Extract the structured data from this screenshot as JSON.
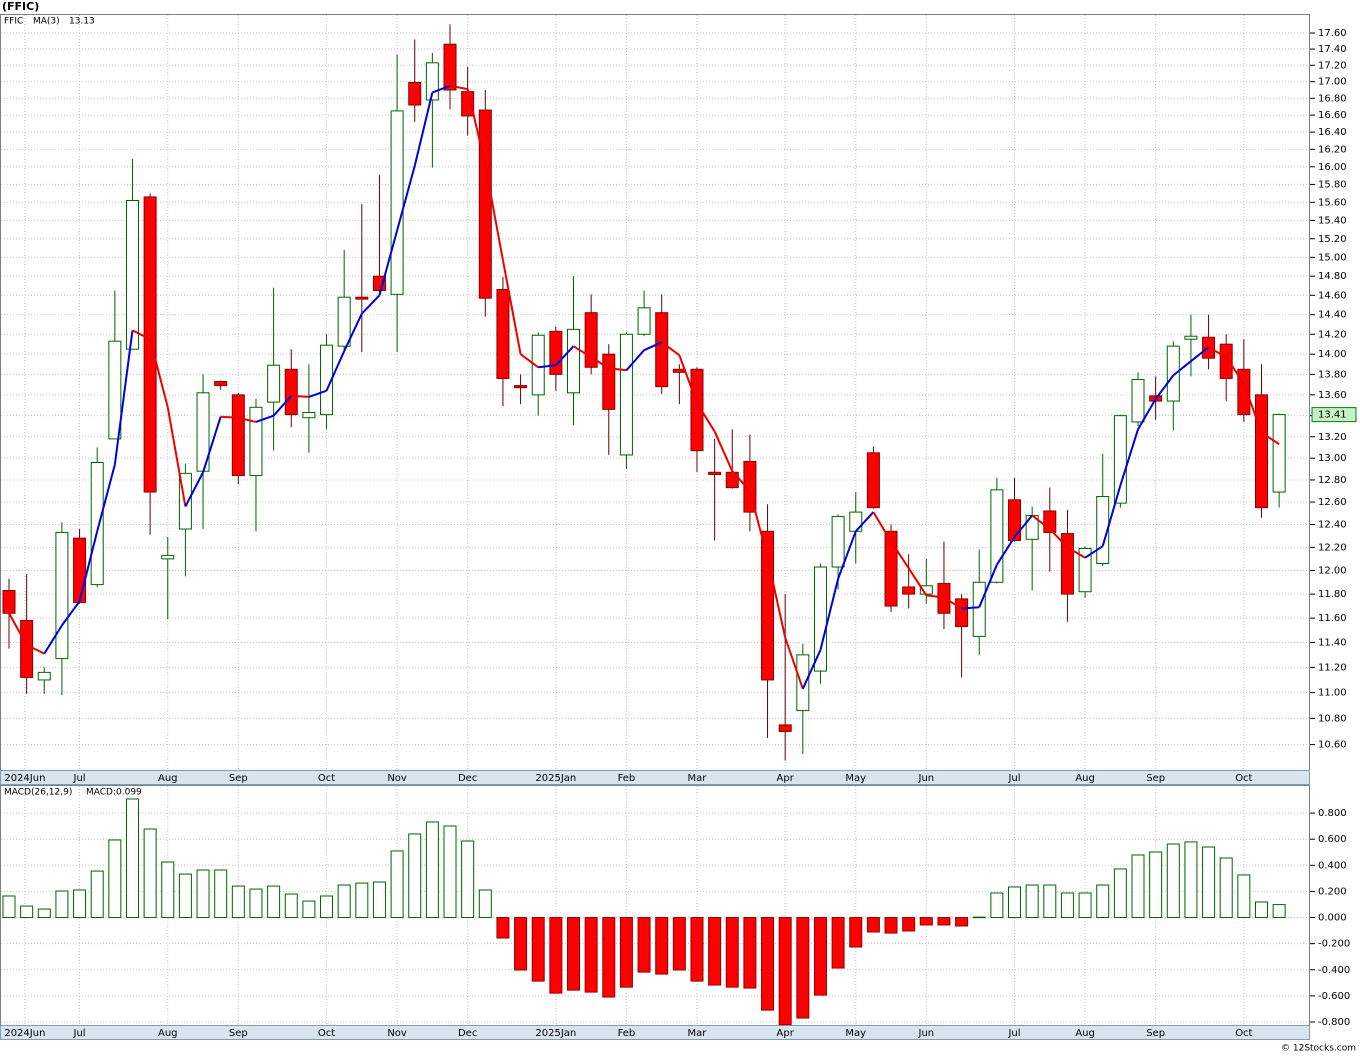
{
  "title": "(FFIC)",
  "footer": "© 12Stocks.com",
  "chart_data": [
    {
      "type": "candlestick",
      "name": "FFIC",
      "open": [
        11.83,
        11.58,
        11.1,
        11.27,
        12.28,
        11.88,
        13.18,
        14.05,
        15.66,
        12.1,
        12.36,
        12.88,
        13.73,
        13.6,
        12.84,
        13.53,
        13.85,
        13.38,
        13.41,
        14.08,
        14.58,
        14.8,
        14.61,
        16.99,
        16.78,
        17.46,
        16.88,
        16.66,
        14.66,
        13.69,
        13.6,
        14.23,
        13.62,
        14.42,
        14.0,
        13.03,
        14.2,
        14.42,
        13.85,
        13.85,
        12.87,
        12.87,
        12.97,
        12.34,
        10.75,
        10.86,
        11.17,
        12.03,
        12.34,
        13.05,
        12.34,
        11.86,
        11.8,
        11.89,
        11.76,
        11.45,
        11.9,
        12.62,
        12.27,
        12.52,
        12.32,
        11.82,
        12.06,
        12.59,
        13.34,
        13.59,
        13.54,
        14.15,
        14.17,
        14.1,
        13.85,
        13.6,
        12.69
      ],
      "high": [
        11.93,
        11.97,
        11.2,
        12.42,
        12.36,
        13.1,
        14.65,
        16.09,
        15.7,
        12.29,
        12.95,
        13.8,
        13.74,
        13.62,
        13.56,
        14.68,
        14.05,
        13.9,
        14.2,
        15.08,
        15.58,
        15.91,
        17.33,
        17.52,
        17.35,
        17.71,
        17.18,
        16.9,
        14.79,
        13.8,
        14.22,
        14.28,
        14.8,
        14.61,
        14.1,
        14.22,
        14.65,
        14.61,
        13.9,
        13.87,
        13.18,
        13.27,
        13.22,
        12.58,
        11.8,
        11.39,
        12.06,
        12.49,
        12.69,
        13.11,
        12.4,
        12.14,
        12.1,
        12.25,
        11.8,
        12.18,
        12.82,
        12.82,
        12.56,
        12.73,
        12.53,
        12.21,
        13.04,
        13.41,
        13.82,
        13.78,
        14.13,
        14.4,
        14.4,
        14.2,
        14.15,
        13.9,
        13.42
      ],
      "low": [
        11.35,
        10.99,
        10.99,
        10.98,
        11.72,
        11.86,
        13.18,
        14.05,
        12.31,
        11.59,
        11.95,
        12.36,
        13.65,
        12.76,
        12.34,
        13.07,
        13.29,
        13.05,
        13.27,
        14.02,
        14.02,
        14.63,
        14.02,
        16.52,
        15.99,
        16.67,
        16.36,
        14.38,
        13.49,
        13.51,
        13.4,
        13.64,
        13.31,
        13.8,
        13.03,
        12.9,
        14.18,
        13.61,
        13.51,
        12.87,
        12.26,
        12.72,
        12.34,
        10.65,
        10.48,
        10.53,
        11.07,
        11.84,
        12.06,
        12.54,
        11.65,
        11.68,
        11.72,
        11.51,
        11.12,
        11.3,
        11.89,
        12.25,
        11.83,
        11.99,
        11.57,
        11.77,
        12.04,
        12.55,
        13.3,
        13.36,
        13.26,
        13.78,
        13.85,
        13.54,
        13.34,
        12.46,
        12.55
      ],
      "close": [
        11.64,
        11.12,
        11.16,
        12.33,
        11.73,
        12.96,
        14.13,
        15.62,
        12.69,
        12.13,
        12.86,
        13.62,
        13.69,
        12.84,
        13.48,
        13.89,
        13.41,
        13.43,
        14.09,
        14.58,
        14.56,
        14.65,
        16.65,
        16.72,
        17.23,
        16.9,
        16.59,
        14.57,
        13.76,
        13.67,
        14.19,
        13.8,
        14.25,
        13.87,
        13.46,
        14.2,
        14.47,
        13.68,
        13.82,
        13.07,
        12.85,
        12.73,
        12.51,
        11.1,
        10.7,
        11.3,
        12.03,
        12.47,
        12.51,
        12.55,
        11.7,
        11.8,
        11.87,
        11.64,
        11.53,
        11.9,
        12.71,
        12.26,
        12.48,
        12.33,
        11.8,
        12.19,
        12.65,
        13.4,
        13.75,
        13.54,
        14.08,
        14.18,
        13.96,
        13.76,
        13.41,
        12.55,
        13.41
      ],
      "last_label": "13.41",
      "up_color": "#006400",
      "down_color": "#ff0000",
      "ma": {
        "name": "MA(3)",
        "last_label": "13.13",
        "up_color": "#0000dd",
        "down_color": "#ee0000",
        "values": [
          11.64,
          11.38,
          11.31,
          11.54,
          11.74,
          12.34,
          12.94,
          14.24,
          14.15,
          13.48,
          12.56,
          12.87,
          13.39,
          13.38,
          13.34,
          13.4,
          13.59,
          13.58,
          13.64,
          14.03,
          14.41,
          14.6,
          15.29,
          16.01,
          16.87,
          16.95,
          16.91,
          16.02,
          14.97,
          14.0,
          13.87,
          13.89,
          14.08,
          13.97,
          13.86,
          13.84,
          14.04,
          14.12,
          13.99,
          13.52,
          13.25,
          12.88,
          12.7,
          12.11,
          11.44,
          11.03,
          11.34,
          11.93,
          12.34,
          12.51,
          12.25,
          12.02,
          11.79,
          11.77,
          11.68,
          11.69,
          12.05,
          12.29,
          12.48,
          12.36,
          12.2,
          12.11,
          12.21,
          12.75,
          13.27,
          13.56,
          13.79,
          13.93,
          14.07,
          13.97,
          13.71,
          13.24,
          13.13
        ]
      },
      "log_scale": true,
      "grid": true,
      "xlim": [
        -0.51,
        73.75
      ],
      "ylim": [
        10.41,
        17.84
      ],
      "xticks": [
        {
          "value": 0.9,
          "label": "2024Jun"
        },
        {
          "value": 4,
          "label": "Jul"
        },
        {
          "value": 9,
          "label": "Aug"
        },
        {
          "value": 13,
          "label": "Sep"
        },
        {
          "value": 18,
          "label": "Oct"
        },
        {
          "value": 22,
          "label": "Nov"
        },
        {
          "value": 26,
          "label": "Dec"
        },
        {
          "value": 31,
          "label": "2025Jan"
        },
        {
          "value": 35,
          "label": "Feb"
        },
        {
          "value": 39,
          "label": "Mar"
        },
        {
          "value": 44,
          "label": "Apr"
        },
        {
          "value": 48,
          "label": "May"
        },
        {
          "value": 52,
          "label": "Jun"
        },
        {
          "value": 57,
          "label": "Jul"
        },
        {
          "value": 61,
          "label": "Aug"
        },
        {
          "value": 65,
          "label": "Sep"
        },
        {
          "value": 70,
          "label": "Oct"
        }
      ],
      "yticks": [
        {
          "value": 10.6,
          "label": "10.60"
        },
        {
          "value": 10.8,
          "label": "10.80"
        },
        {
          "value": 11.0,
          "label": "11.00"
        },
        {
          "value": 11.2,
          "label": "11.20"
        },
        {
          "value": 11.4,
          "label": "11.40"
        },
        {
          "value": 11.6,
          "label": "11.60"
        },
        {
          "value": 11.8,
          "label": "11.80"
        },
        {
          "value": 12.0,
          "label": "12.00"
        },
        {
          "value": 12.2,
          "label": "12.20"
        },
        {
          "value": 12.4,
          "label": "12.40"
        },
        {
          "value": 12.6,
          "label": "12.60"
        },
        {
          "value": 12.8,
          "label": "12.80"
        },
        {
          "value": 13.0,
          "label": "13.00"
        },
        {
          "value": 13.2,
          "label": "13.20"
        },
        {
          "value": 13.4,
          "label": "13.40"
        },
        {
          "value": 13.6,
          "label": "13.60"
        },
        {
          "value": 13.8,
          "label": "13.80"
        },
        {
          "value": 14.0,
          "label": "14.00"
        },
        {
          "value": 14.2,
          "label": "14.20"
        },
        {
          "value": 14.4,
          "label": "14.40"
        },
        {
          "value": 14.6,
          "label": "14.60"
        },
        {
          "value": 14.8,
          "label": "14.80"
        },
        {
          "value": 15.0,
          "label": "15.00"
        },
        {
          "value": 15.2,
          "label": "15.20"
        },
        {
          "value": 15.4,
          "label": "15.40"
        },
        {
          "value": 15.6,
          "label": "15.60"
        },
        {
          "value": 15.8,
          "label": "15.80"
        },
        {
          "value": 16.0,
          "label": "16.00"
        },
        {
          "value": 16.2,
          "label": "16.20"
        },
        {
          "value": 16.4,
          "label": "16.40"
        },
        {
          "value": 16.6,
          "label": "16.60"
        },
        {
          "value": 16.8,
          "label": "16.80"
        },
        {
          "value": 17.0,
          "label": "17.00"
        },
        {
          "value": 17.2,
          "label": "17.20"
        },
        {
          "value": 17.4,
          "label": "17.40"
        },
        {
          "value": 17.6,
          "label": "17.60"
        }
      ]
    },
    {
      "type": "bar",
      "name": "MACD(26,12,9)",
      "last_label": "MACD:0.099",
      "values": [
        0.165,
        0.088,
        0.065,
        0.203,
        0.211,
        0.356,
        0.594,
        0.908,
        0.678,
        0.425,
        0.333,
        0.364,
        0.364,
        0.241,
        0.218,
        0.241,
        0.18,
        0.126,
        0.165,
        0.249,
        0.264,
        0.272,
        0.51,
        0.64,
        0.732,
        0.701,
        0.586,
        0.211,
        -0.157,
        -0.402,
        -0.487,
        -0.579,
        -0.556,
        -0.571,
        -0.609,
        -0.533,
        -0.418,
        -0.433,
        -0.402,
        -0.487,
        -0.517,
        -0.533,
        -0.54,
        -0.709,
        -0.82,
        -0.77,
        -0.594,
        -0.387,
        -0.226,
        -0.111,
        -0.119,
        -0.103,
        -0.057,
        -0.057,
        -0.065,
        0.003,
        0.188,
        0.234,
        0.249,
        0.249,
        0.188,
        0.188,
        0.249,
        0.372,
        0.479,
        0.502,
        0.563,
        0.579,
        0.54,
        0.456,
        0.326,
        0.119,
        0.099
      ],
      "up_color": "#006400",
      "down_color": "#ff0000",
      "log_scale": false,
      "grid": true,
      "xlim": [
        -0.51,
        73.75
      ],
      "ylim": [
        -0.823,
        1.015
      ],
      "xticks": [
        {
          "value": 0.9,
          "label": "2024Jun"
        },
        {
          "value": 4,
          "label": "Jul"
        },
        {
          "value": 9,
          "label": "Aug"
        },
        {
          "value": 13,
          "label": "Sep"
        },
        {
          "value": 18,
          "label": "Oct"
        },
        {
          "value": 22,
          "label": "Nov"
        },
        {
          "value": 26,
          "label": "Dec"
        },
        {
          "value": 31,
          "label": "2025Jan"
        },
        {
          "value": 35,
          "label": "Feb"
        },
        {
          "value": 39,
          "label": "Mar"
        },
        {
          "value": 44,
          "label": "Apr"
        },
        {
          "value": 48,
          "label": "May"
        },
        {
          "value": 52,
          "label": "Jun"
        },
        {
          "value": 57,
          "label": "Jul"
        },
        {
          "value": 61,
          "label": "Aug"
        },
        {
          "value": 65,
          "label": "Sep"
        },
        {
          "value": 70,
          "label": "Oct"
        }
      ],
      "yticks": [
        {
          "value": -0.8,
          "label": "-0.800"
        },
        {
          "value": -0.6,
          "label": "-0.600"
        },
        {
          "value": -0.4,
          "label": "-0.400"
        },
        {
          "value": -0.2,
          "label": "-0.200"
        },
        {
          "value": 0,
          "label": "0.000"
        },
        {
          "value": 0.2,
          "label": "0.200"
        },
        {
          "value": 0.4,
          "label": "0.400"
        },
        {
          "value": 0.6,
          "label": "0.600"
        },
        {
          "value": 0.8,
          "label": "0.800"
        }
      ]
    }
  ]
}
